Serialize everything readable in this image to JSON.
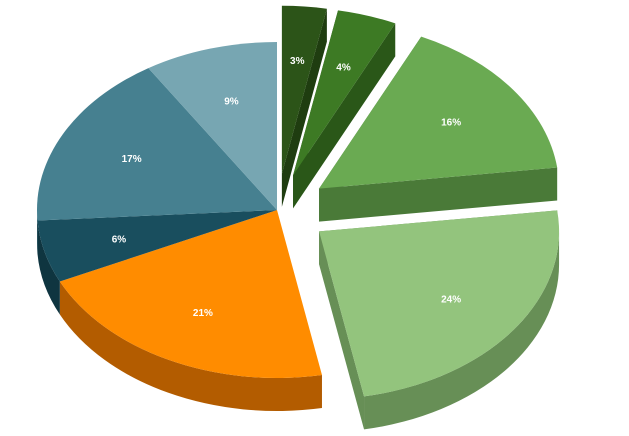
{
  "chart_data": {
    "type": "pie",
    "style": "3d-exploded",
    "title": "",
    "legend": "none",
    "slices": [
      {
        "value": 3,
        "label": "3%",
        "top_color": "#2c5418",
        "side_color": "#1f3d10",
        "exploded": true
      },
      {
        "value": 4,
        "label": "4%",
        "top_color": "#3d7a24",
        "side_color": "#2a5718",
        "exploded": true
      },
      {
        "value": 16,
        "label": "16%",
        "top_color": "#6aaa52",
        "side_color": "#4a7a38",
        "exploded": true
      },
      {
        "value": 24,
        "label": "24%",
        "top_color": "#93c47d",
        "side_color": "#678f56",
        "exploded": true
      },
      {
        "value": 21,
        "label": "21%",
        "top_color": "#ff8c00",
        "side_color": "#b35c00",
        "exploded": false
      },
      {
        "value": 6,
        "label": "6%",
        "top_color": "#194e5e",
        "side_color": "#0f3540",
        "exploded": false
      },
      {
        "value": 17,
        "label": "17%",
        "top_color": "#468090",
        "side_color": "#2f5f6c",
        "exploded": false
      },
      {
        "value": 9,
        "label": "9%",
        "top_color": "#77a6b2",
        "side_color": "#557f8a",
        "exploded": false
      }
    ]
  }
}
